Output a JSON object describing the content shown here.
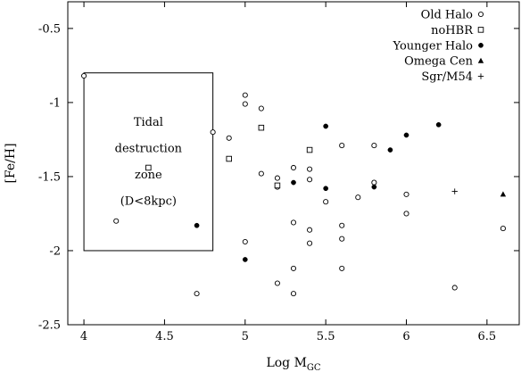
{
  "chart_data": {
    "type": "scatter",
    "xlabel": "Log M",
    "xlabel_sub": "GC",
    "ylabel": "[Fe/H]",
    "xlim": [
      3.9,
      6.7
    ],
    "ylim": [
      -2.5,
      -0.32
    ],
    "x_ticks": [
      4,
      4.5,
      5,
      5.5,
      6,
      6.5
    ],
    "x_tick_labels": [
      "4",
      "4.5",
      "5",
      "5.5",
      "6",
      "6.5"
    ],
    "y_ticks": [
      -2.5,
      -2,
      -1.5,
      -1,
      -0.5
    ],
    "y_tick_labels": [
      "-2.5",
      "-2",
      "-1.5",
      "-1",
      "-0.5"
    ],
    "grid": false,
    "legend_position": "top-right",
    "series": [
      {
        "name": "Old Halo",
        "marker": "open-circle",
        "points": [
          {
            "x": 4.0,
            "y": -0.82
          },
          {
            "x": 4.2,
            "y": -1.8
          },
          {
            "x": 4.7,
            "y": -2.29
          },
          {
            "x": 4.8,
            "y": -1.2
          },
          {
            "x": 4.9,
            "y": -1.24
          },
          {
            "x": 5.0,
            "y": -0.95
          },
          {
            "x": 5.0,
            "y": -1.01
          },
          {
            "x": 5.0,
            "y": -1.94
          },
          {
            "x": 5.1,
            "y": -1.04
          },
          {
            "x": 5.1,
            "y": -1.48
          },
          {
            "x": 5.2,
            "y": -1.51
          },
          {
            "x": 5.2,
            "y": -1.57
          },
          {
            "x": 5.2,
            "y": -2.22
          },
          {
            "x": 5.3,
            "y": -1.44
          },
          {
            "x": 5.3,
            "y": -1.81
          },
          {
            "x": 5.3,
            "y": -2.12
          },
          {
            "x": 5.3,
            "y": -2.29
          },
          {
            "x": 5.4,
            "y": -1.45
          },
          {
            "x": 5.4,
            "y": -1.52
          },
          {
            "x": 5.4,
            "y": -1.86
          },
          {
            "x": 5.4,
            "y": -1.95
          },
          {
            "x": 5.5,
            "y": -1.67
          },
          {
            "x": 5.6,
            "y": -1.29
          },
          {
            "x": 5.6,
            "y": -1.83
          },
          {
            "x": 5.6,
            "y": -1.92
          },
          {
            "x": 5.6,
            "y": -2.12
          },
          {
            "x": 5.7,
            "y": -1.64
          },
          {
            "x": 5.8,
            "y": -1.29
          },
          {
            "x": 5.8,
            "y": -1.54
          },
          {
            "x": 6.0,
            "y": -1.62
          },
          {
            "x": 6.0,
            "y": -1.75
          },
          {
            "x": 6.3,
            "y": -2.25
          },
          {
            "x": 6.6,
            "y": -1.85
          }
        ]
      },
      {
        "name": "noHBR",
        "marker": "open-square",
        "points": [
          {
            "x": 4.4,
            "y": -1.44
          },
          {
            "x": 4.9,
            "y": -1.38
          },
          {
            "x": 5.1,
            "y": -1.17
          },
          {
            "x": 5.2,
            "y": -1.56
          },
          {
            "x": 5.4,
            "y": -1.32
          }
        ]
      },
      {
        "name": "Younger Halo",
        "marker": "filled-circle",
        "points": [
          {
            "x": 4.7,
            "y": -1.83
          },
          {
            "x": 5.0,
            "y": -2.06
          },
          {
            "x": 5.3,
            "y": -1.54
          },
          {
            "x": 5.5,
            "y": -1.16
          },
          {
            "x": 5.5,
            "y": -1.58
          },
          {
            "x": 5.8,
            "y": -1.57
          },
          {
            "x": 5.9,
            "y": -1.32
          },
          {
            "x": 6.0,
            "y": -1.22
          },
          {
            "x": 6.2,
            "y": -1.15
          }
        ]
      },
      {
        "name": "Omega Cen",
        "marker": "filled-triangle",
        "points": [
          {
            "x": 6.6,
            "y": -1.62
          }
        ]
      },
      {
        "name": "Sgr/M54",
        "marker": "plus",
        "points": [
          {
            "x": 6.3,
            "y": -1.6
          }
        ]
      }
    ],
    "annotations": [
      {
        "type": "rectangle",
        "x_range": [
          4.0,
          4.8
        ],
        "y_range": [
          -2.0,
          -0.8
        ],
        "label_lines": [
          "Tidal",
          "destruction",
          "zone",
          "(D<8kpc)"
        ]
      }
    ]
  }
}
